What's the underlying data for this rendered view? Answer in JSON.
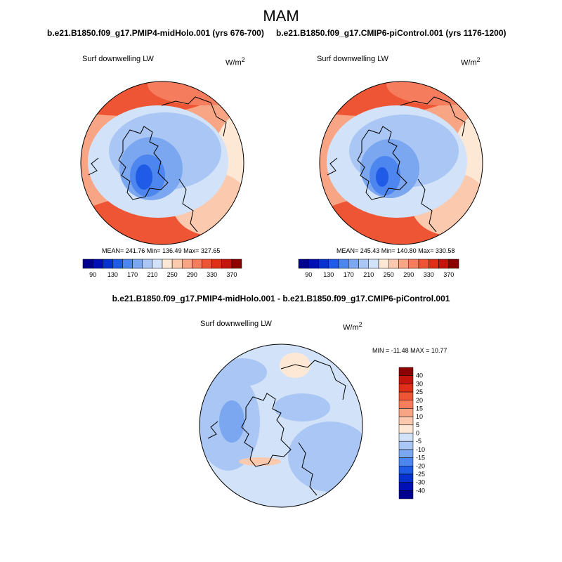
{
  "season": "MAM",
  "colors": {
    "scale": [
      "#00008f",
      "#0010b4",
      "#0633d0",
      "#1f5be6",
      "#4d86ee",
      "#7ba6f0",
      "#a9c6f4",
      "#d2e3f9",
      "#fde8d6",
      "#fbc9ae",
      "#f8a585",
      "#f57d5d",
      "#ee5535",
      "#e02f19",
      "#c3150c",
      "#8c0000"
    ],
    "land_line": "#000000"
  },
  "chart_data": [
    {
      "type": "heatmap",
      "panel": "top-left",
      "title": "b.e21.B1850.f09_g17.PMIP4-midHolo.001 (yrs 676-700)",
      "field_label": "Surf downwelling LW",
      "units": "W/m",
      "units_exp": "2",
      "projection": "north polar stereographic",
      "stats_text": "MEAN= 241.76  Min= 136.49  Max= 327.65",
      "stats": {
        "mean": 241.76,
        "min": 136.49,
        "max": 327.65
      },
      "colorbar": {
        "orientation": "horizontal",
        "ticks": [
          "90",
          "130",
          "170",
          "210",
          "250",
          "290",
          "330",
          "370"
        ],
        "range": [
          70,
          390
        ],
        "step": 20
      }
    },
    {
      "type": "heatmap",
      "panel": "top-right",
      "title": "b.e21.B1850.f09_g17.CMIP6-piControl.001 (yrs 1176-1200)",
      "field_label": "Surf downwelling LW",
      "units": "W/m",
      "units_exp": "2",
      "projection": "north polar stereographic",
      "stats_text": "MEAN= 245.43  Min= 140.80  Max= 330.58",
      "stats": {
        "mean": 245.43,
        "min": 140.8,
        "max": 330.58
      },
      "colorbar": {
        "orientation": "horizontal",
        "ticks": [
          "90",
          "130",
          "170",
          "210",
          "250",
          "290",
          "330",
          "370"
        ],
        "range": [
          70,
          390
        ],
        "step": 20
      }
    },
    {
      "type": "heatmap",
      "panel": "bottom",
      "title": "b.e21.B1850.f09_g17.PMIP4-midHolo.001 - b.e21.B1850.f09_g17.CMIP6-piControl.001",
      "field_label": "Surf downwelling LW",
      "units": "W/m",
      "units_exp": "2",
      "projection": "north polar stereographic",
      "stats_text": "MIN = -11.48 MAX =  10.77",
      "stats": {
        "min": -11.48,
        "max": 10.77
      },
      "colorbar": {
        "orientation": "vertical",
        "ticks": [
          "40",
          "30",
          "25",
          "20",
          "15",
          "10",
          "5",
          "0",
          "-5",
          "-10",
          "-15",
          "-20",
          "-25",
          "-30",
          "-40"
        ]
      }
    }
  ]
}
